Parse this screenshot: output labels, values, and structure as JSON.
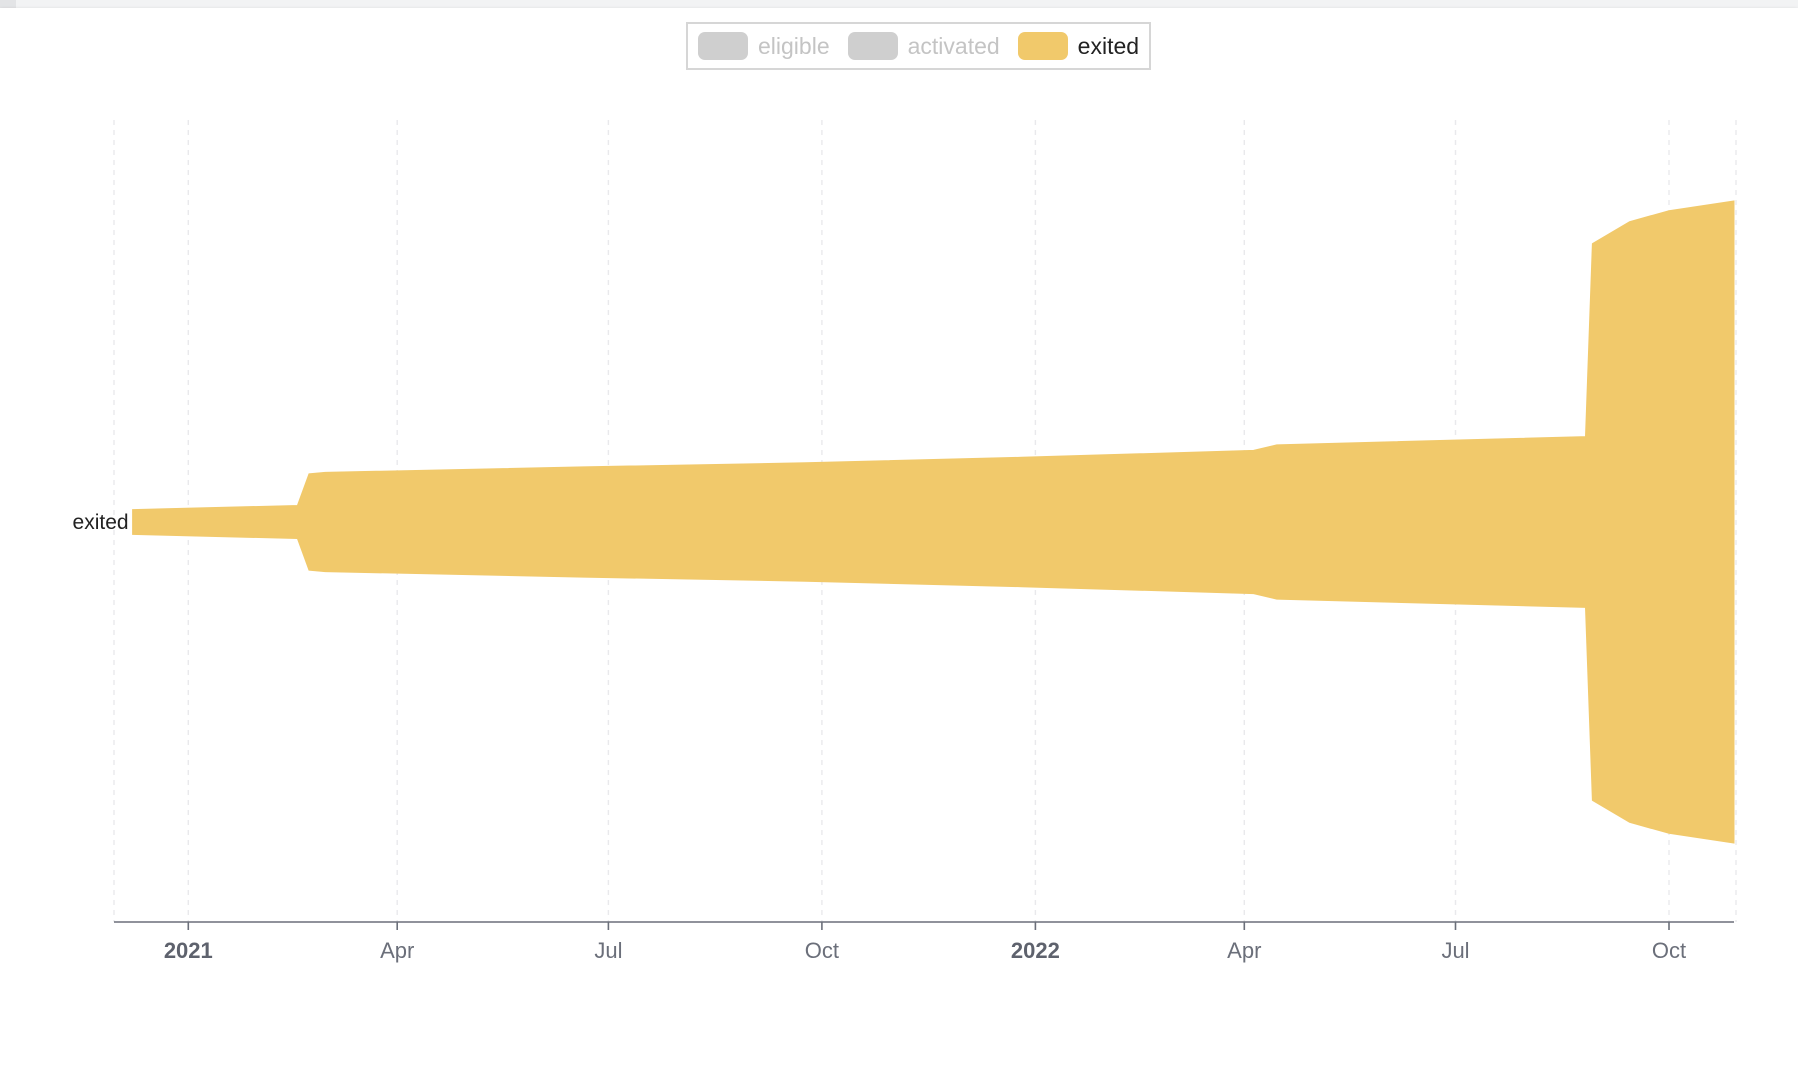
{
  "legend": {
    "items": [
      {
        "label": "eligible",
        "color": "#cfcfcf",
        "text_color": "#c4c4c4",
        "active": false
      },
      {
        "label": "activated",
        "color": "#cfcfcf",
        "text_color": "#c4c4c4",
        "active": false
      },
      {
        "label": "exited",
        "color": "#f1c96b",
        "text_color": "#222222",
        "active": true
      }
    ]
  },
  "chart_data": {
    "type": "area",
    "layout": "streamgraph",
    "series": [
      {
        "name": "exited",
        "color": "#f1c96b",
        "points": [
          {
            "x": "2020-12-08",
            "y": 9
          },
          {
            "x": "2021-02-17",
            "y": 12
          },
          {
            "x": "2021-02-22",
            "y": 35
          },
          {
            "x": "2021-03-01",
            "y": 36
          },
          {
            "x": "2021-06-20",
            "y": 40
          },
          {
            "x": "2021-09-24",
            "y": 43
          },
          {
            "x": "2021-12-26",
            "y": 47
          },
          {
            "x": "2022-04-05",
            "y": 52
          },
          {
            "x": "2022-04-15",
            "y": 56
          },
          {
            "x": "2022-08-26",
            "y": 62
          },
          {
            "x": "2022-08-29",
            "y": 202
          },
          {
            "x": "2022-09-14",
            "y": 218
          },
          {
            "x": "2022-10-01",
            "y": 226
          },
          {
            "x": "2022-10-29",
            "y": 233
          }
        ]
      }
    ],
    "x_ticks": [
      {
        "label": "2021",
        "date": "2021-01-01",
        "major": true
      },
      {
        "label": "Apr",
        "date": "2021-04-01",
        "major": false
      },
      {
        "label": "Jul",
        "date": "2021-07-01",
        "major": false
      },
      {
        "label": "Oct",
        "date": "2021-10-01",
        "major": false
      },
      {
        "label": "2022",
        "date": "2022-01-01",
        "major": true
      },
      {
        "label": "Apr",
        "date": "2022-04-01",
        "major": false
      },
      {
        "label": "Jul",
        "date": "2022-07-01",
        "major": false
      },
      {
        "label": "Oct",
        "date": "2022-10-01",
        "major": false
      }
    ],
    "x_range": [
      "2020-11-30",
      "2022-10-29"
    ],
    "grid": true,
    "legend_placement": "top-center"
  }
}
